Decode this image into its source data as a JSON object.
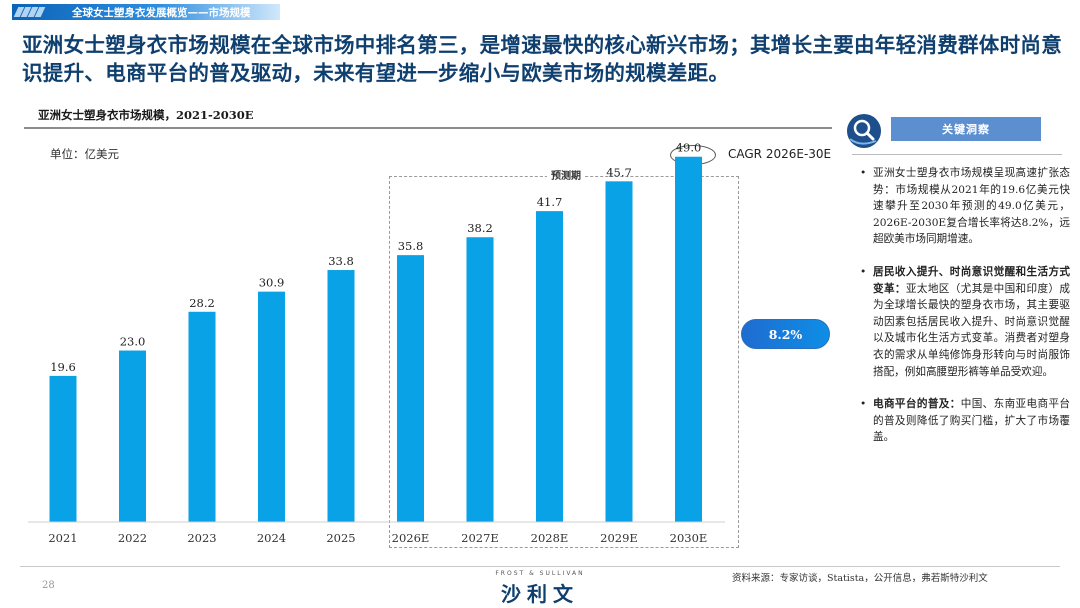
{
  "breadcrumb": "全球女士塑身衣发展概览——市场规模",
  "headline": "亚洲女士塑身衣市场规模在全球市场中排名第三，是增速最快的核心新兴市场；其增长主要由年轻消费群体时尚意识提升、电商平台的普及驱动，未来有望进一步缩小与欧美市场的规模差距。",
  "chart_title": "亚洲女士塑身衣市场规模，2021-2030E",
  "unit_label": "单位：亿美元",
  "cagr_legend": "CAGR  2026E-30E",
  "forecast_label": "预测期",
  "cagr_value": "8.2%",
  "chart_data": {
    "type": "bar",
    "title": "亚洲女士塑身衣市场规模，2021-2030E",
    "unit": "亿美元",
    "categories": [
      "2021",
      "2022",
      "2023",
      "2024",
      "2025",
      "2026E",
      "2027E",
      "2028E",
      "2029E",
      "2030E"
    ],
    "values": [
      19.6,
      23.0,
      28.2,
      30.9,
      33.8,
      35.8,
      38.2,
      41.7,
      45.7,
      49.0
    ],
    "value_labels": [
      "19.6",
      "23.0",
      "28.2",
      "30.9",
      "33.8",
      "35.8",
      "38.2",
      "41.7",
      "45.7",
      "49.0"
    ],
    "ylim": [
      0,
      55
    ],
    "grid": false,
    "forecast_start_index": 5,
    "bar_color": "#0aa2e6"
  },
  "insights": {
    "header": "关键洞察",
    "items": [
      {
        "bold": "",
        "text": "亚洲女士塑身衣市场规模呈现高速扩张态势：市场规模从2021年的19.6亿美元快速攀升至2030年预测的49.0亿美元，2026E-2030E复合增长率将达8.2%，远超欧美市场同期增速。"
      },
      {
        "bold": "居民收入提升、时尚意识觉醒和生活方式变革：",
        "text": "亚太地区（尤其是中国和印度）成为全球增长最快的塑身衣市场，其主要驱动因素包括居民收入提升、时尚意识觉醒以及城市化生活方式变革。消费者对塑身衣的需求从单纯修饰身形转向与时尚服饰搭配，例如高腰塑形裤等单品受欢迎。"
      },
      {
        "bold": "电商平台的普及：",
        "text": "中国、东南亚电商平台的普及则降低了购买门槛，扩大了市场覆盖。"
      }
    ]
  },
  "footer": {
    "page_number": "28",
    "brand_en": "FROST & SULLIVAN",
    "brand_cn": "沙利文",
    "source": "资料来源：专家访谈，Statista，公开信息，弗若斯特沙利文"
  }
}
